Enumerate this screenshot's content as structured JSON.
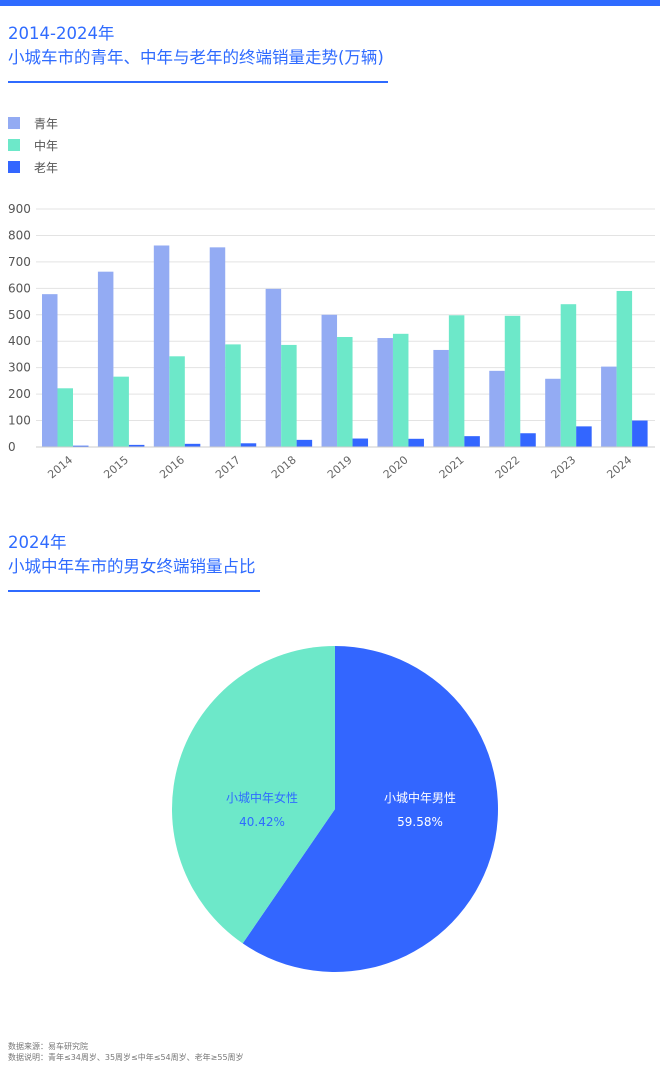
{
  "bar_section": {
    "title_line1": "2014-2024年",
    "title_line2": "小城车市的青年、中年与老年的终端销量走势(万辆)"
  },
  "pie_section": {
    "title_line1": "2024年",
    "title_line2": "小城中年车市的男女终端销量占比"
  },
  "footer": {
    "source": "数据来源：易车研究院",
    "note": "数据说明：青年≤34周岁、35周岁≤中年≤54周岁、老年≥55周岁"
  },
  "colors": {
    "accent": "#2f6bff",
    "youth": "#93abf3",
    "middle": "#6de8c9",
    "elder": "#3366ff",
    "pie_male": "#3366ff",
    "pie_female": "#6de8c9"
  },
  "chart_data": [
    {
      "type": "bar",
      "categories": [
        "2014",
        "2015",
        "2016",
        "2017",
        "2018",
        "2019",
        "2020",
        "2021",
        "2022",
        "2023",
        "2024"
      ],
      "series": [
        {
          "name": "青年",
          "values": [
            578,
            663,
            762,
            755,
            598,
            500,
            412,
            367,
            288,
            258,
            304
          ]
        },
        {
          "name": "中年",
          "values": [
            222,
            266,
            343,
            388,
            386,
            416,
            428,
            498,
            496,
            540,
            590
          ]
        },
        {
          "name": "老年",
          "values": [
            5,
            8,
            12,
            14,
            27,
            32,
            31,
            41,
            52,
            78,
            100
          ]
        }
      ],
      "yticks": [
        "0",
        "100",
        "200",
        "300",
        "400",
        "500",
        "600",
        "700",
        "800",
        "900"
      ],
      "ylim": [
        0,
        900
      ],
      "grid": true,
      "legend_position": "top-left"
    },
    {
      "type": "pie",
      "slices": [
        {
          "label": "小城中年男性",
          "value_text": "59.58%",
          "value": 59.58
        },
        {
          "label": "小城中年女性",
          "value_text": "40.42%",
          "value": 40.42
        }
      ]
    }
  ]
}
